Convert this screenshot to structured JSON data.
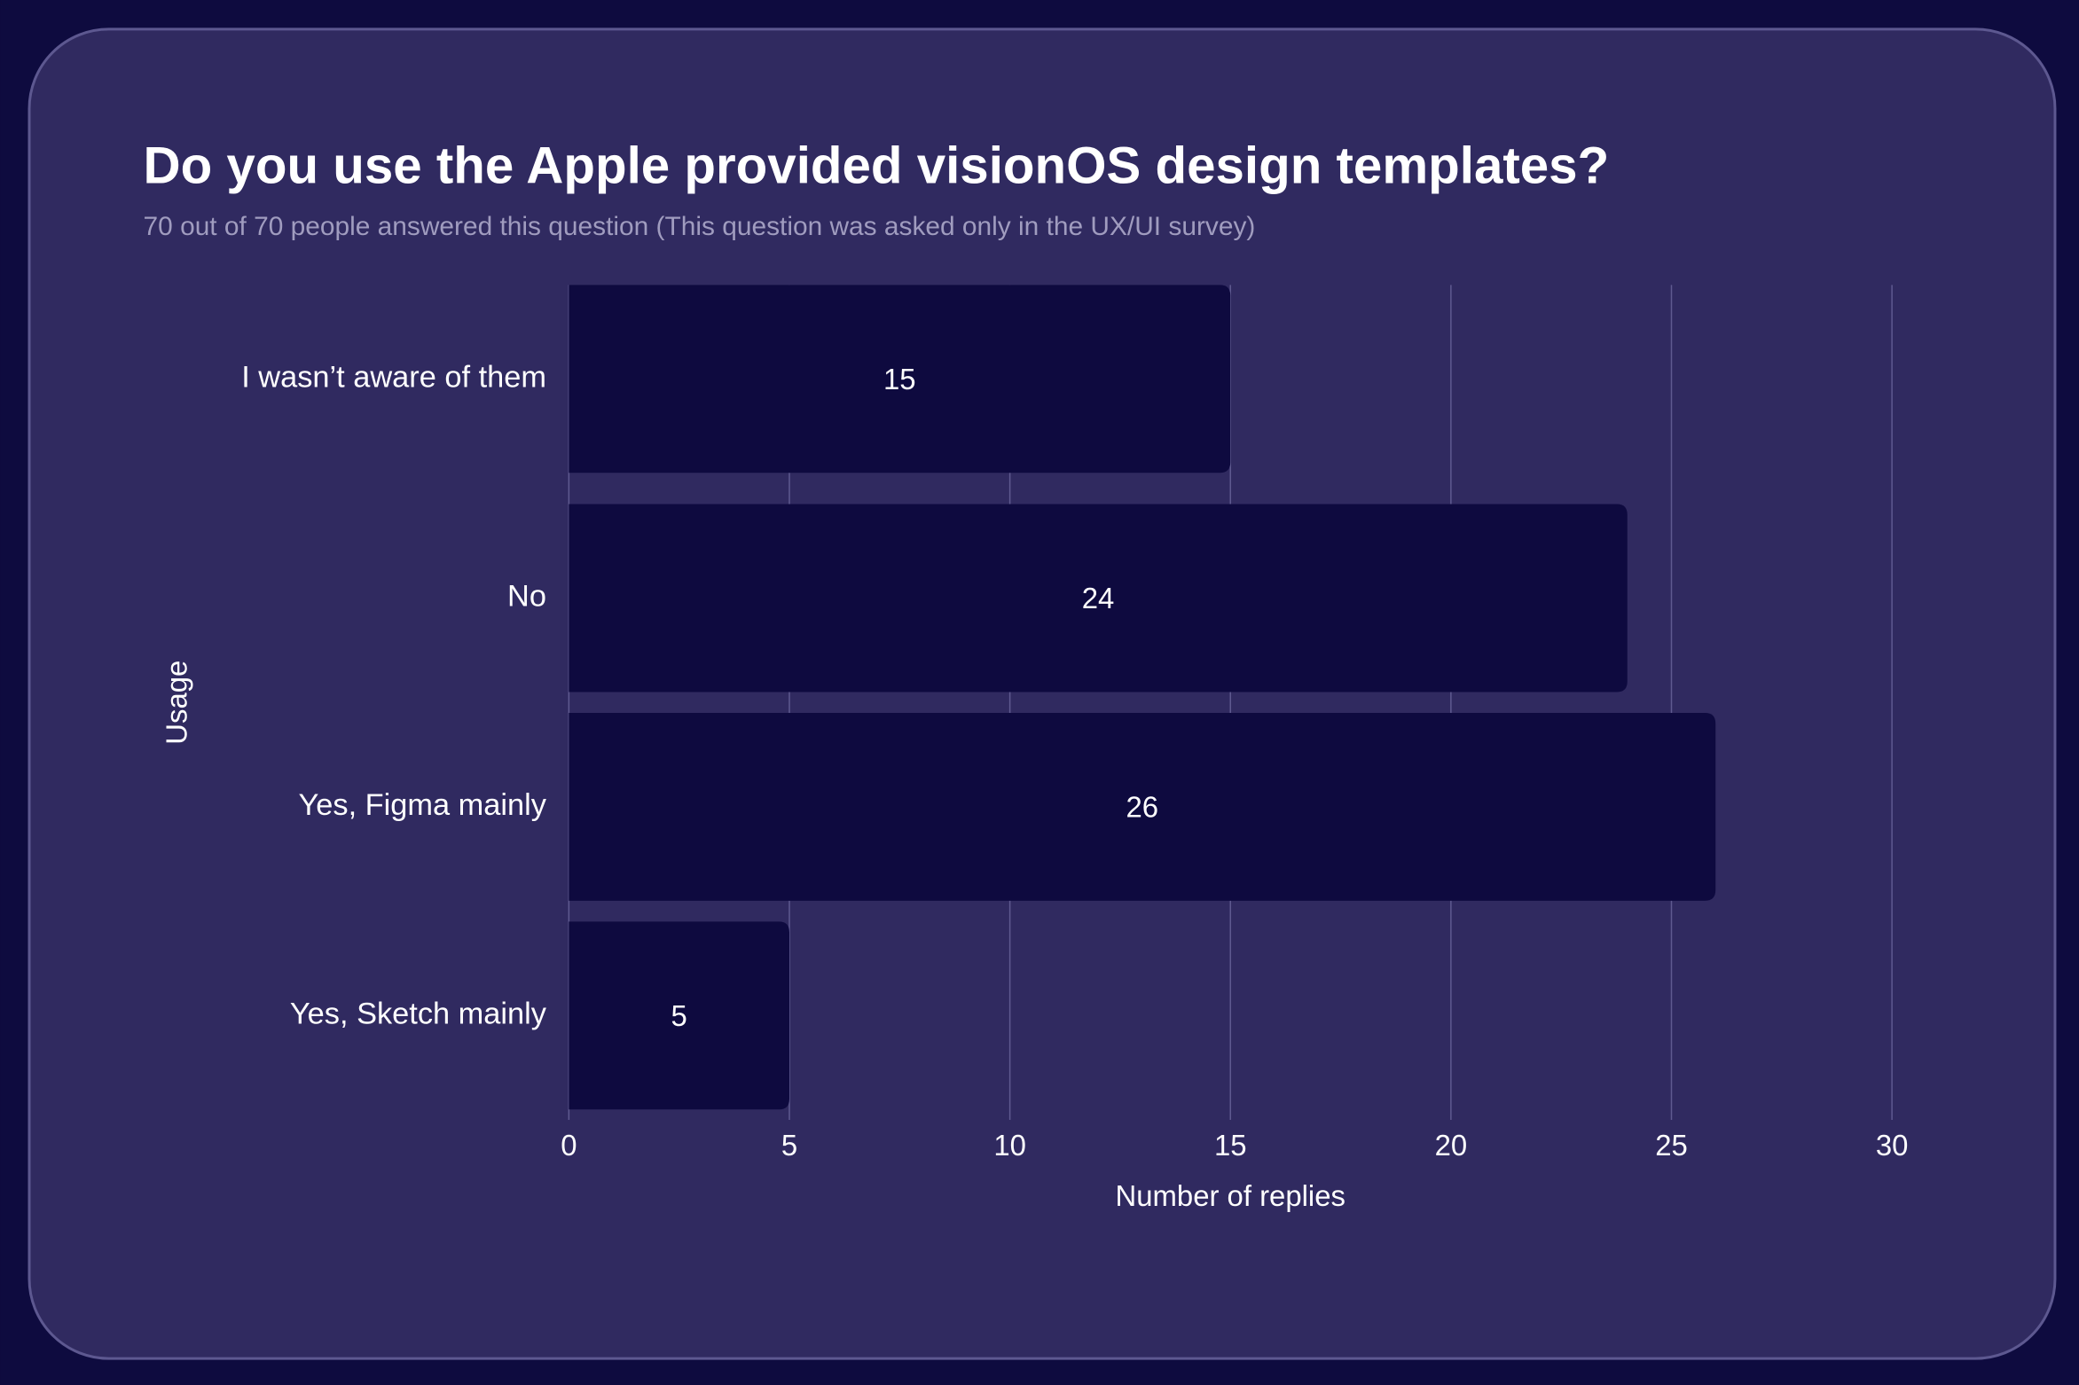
{
  "chart_data": {
    "type": "bar",
    "orientation": "horizontal",
    "title": "Do you use the Apple provided visionOS design templates?",
    "subtitle": "70 out of 70 people answered this question (This question was asked only in the UX/UI survey)",
    "x_label": "Number of replies",
    "y_label": "Usage",
    "categories": [
      "I wasn’t aware of them",
      "No",
      "Yes, Figma mainly",
      "Yes, Sketch mainly"
    ],
    "values": [
      15,
      24,
      26,
      5
    ],
    "color": "#0e0a3f",
    "xlim": [
      0,
      30
    ],
    "xticks": [
      0,
      5,
      10,
      15,
      20,
      25,
      30
    ],
    "grid": true
  }
}
